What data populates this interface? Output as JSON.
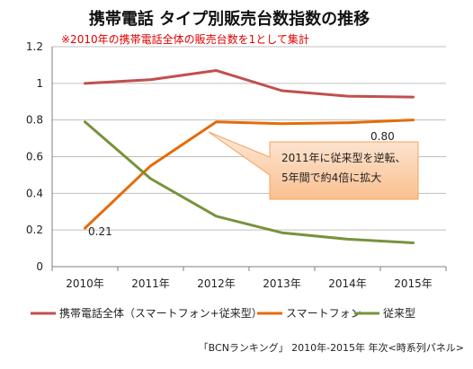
{
  "chart_data": {
    "type": "line",
    "title": "携帯電話 タイプ別販売台数指数の推移",
    "subtitle": "※2010年の携帯電話全体の販売台数を1として集計",
    "categories": [
      "2010年",
      "2011年",
      "2012年",
      "2013年",
      "2014年",
      "2015年"
    ],
    "ylim": [
      0,
      1.2
    ],
    "yticks": [
      "0",
      "0.2",
      "0.4",
      "0.6",
      "0.8",
      "1",
      "1.2"
    ],
    "grid": true,
    "legend_position": "bottom",
    "series": [
      {
        "name": "携帯電話全体（スマートフォン+従来型）",
        "color": "#c0504d",
        "values": [
          1.0,
          1.02,
          1.07,
          0.96,
          0.93,
          0.925
        ]
      },
      {
        "name": "スマートフォン",
        "color": "#e46c0a",
        "values": [
          0.21,
          0.55,
          0.79,
          0.78,
          0.785,
          0.8
        ]
      },
      {
        "name": "従来型",
        "color": "#77933c",
        "values": [
          0.79,
          0.48,
          0.275,
          0.185,
          0.15,
          0.13
        ]
      }
    ],
    "data_labels": [
      "0.21",
      "0.80"
    ],
    "annotation": [
      "2011年に従来型を逆転、",
      "5年間で約4倍に拡大"
    ],
    "source": "「BCNランキング」 2010年-2015年 年次<時系列パネル>"
  }
}
